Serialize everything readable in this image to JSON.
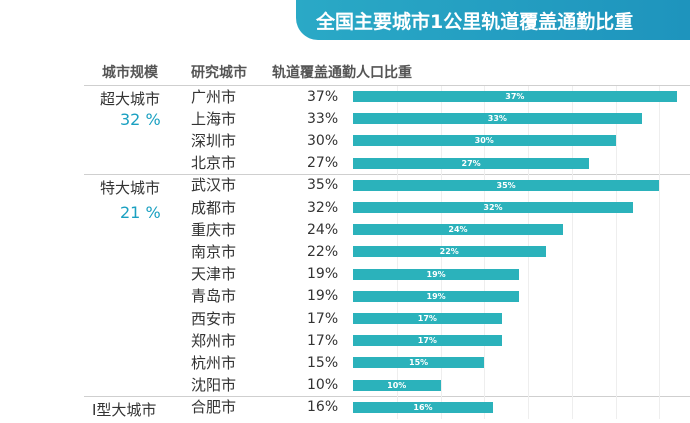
{
  "header": {
    "title": "全国主要城市1公里轨道覆盖通勤比重"
  },
  "columns": {
    "scale": "城市规模",
    "city": "研究城市",
    "ratio": "轨道覆盖通勤人口比重"
  },
  "groups": [
    {
      "label": "超大城市",
      "pct": "32 %"
    },
    {
      "label": "特大城市",
      "pct": "21 %"
    },
    {
      "label": "Ⅰ型大城市",
      "pct": ""
    }
  ],
  "colors": {
    "title_bar": "#2aa9c6",
    "bar": "#2bb2bb",
    "group_pct": "#1aa0c1"
  },
  "chart_data": {
    "type": "bar",
    "orientation": "horizontal",
    "title": "全国主要城市1公里轨道覆盖通勤比重",
    "xlabel": "",
    "ylabel": "",
    "xlim": [
      0,
      40
    ],
    "unit": "%",
    "categories": [
      "广州市",
      "上海市",
      "深圳市",
      "北京市",
      "武汉市",
      "成都市",
      "重庆市",
      "南京市",
      "天津市",
      "青岛市",
      "西安市",
      "郑州市",
      "杭州市",
      "沈阳市",
      "合肥市"
    ],
    "values": [
      37,
      33,
      30,
      27,
      35,
      32,
      24,
      22,
      19,
      19,
      17,
      17,
      15,
      10,
      16
    ],
    "value_labels": [
      "37%",
      "33%",
      "30%",
      "27%",
      "35%",
      "32%",
      "24%",
      "22%",
      "19%",
      "19%",
      "17%",
      "17%",
      "15%",
      "10%",
      "16%"
    ],
    "group_of_category": [
      0,
      0,
      0,
      0,
      1,
      1,
      1,
      1,
      1,
      1,
      1,
      1,
      1,
      1,
      2
    ]
  }
}
